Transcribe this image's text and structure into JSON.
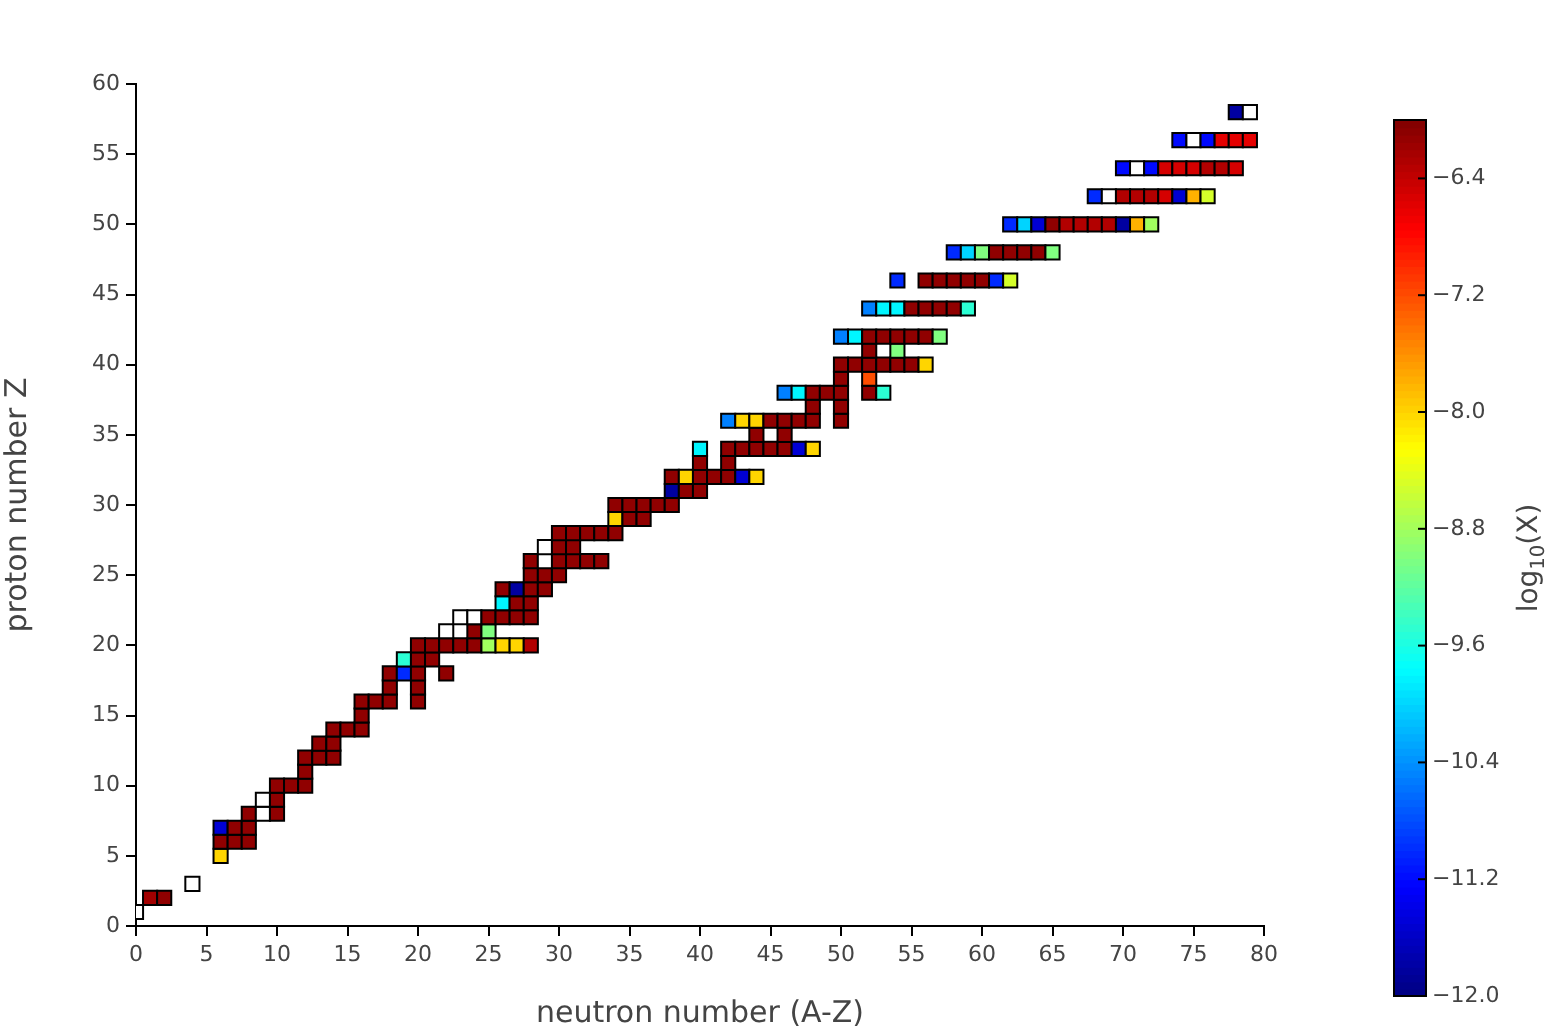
{
  "chart_data": {
    "type": "scatter",
    "xlabel": "neutron number (A-Z)",
    "ylabel": "proton number Z",
    "clabel": "log$_{10}$(X)",
    "marker": "square",
    "legend": false,
    "grid": false,
    "xlim": [
      0,
      80
    ],
    "xticks": [
      0,
      5,
      10,
      15,
      20,
      25,
      30,
      35,
      40,
      45,
      50,
      55,
      60,
      65,
      70,
      75,
      80
    ],
    "ylim": [
      0,
      60
    ],
    "yticks": [
      0,
      5,
      10,
      15,
      20,
      25,
      30,
      35,
      40,
      45,
      50,
      55,
      60
    ],
    "clim": [
      -12,
      -6
    ],
    "cticks": [
      -6.4,
      -7.2,
      {
        "value": -8,
        "label": "−8.0"
      },
      -8.8,
      -9.6,
      -10.4,
      -11.2,
      {
        "value": -12,
        "label": "−12.0"
      }
    ],
    "x": [
      0,
      1,
      2,
      4,
      6,
      6,
      7,
      8,
      6,
      7,
      8,
      8,
      9,
      10,
      9,
      10,
      10,
      11,
      12,
      12,
      12,
      13,
      14,
      13,
      14,
      14,
      15,
      16,
      16,
      16,
      17,
      18,
      20,
      18,
      20,
      18,
      19,
      20,
      22,
      19,
      20,
      21,
      20,
      21,
      22,
      23,
      24,
      25,
      26,
      27,
      28,
      22,
      24,
      25,
      23,
      24,
      25,
      26,
      27,
      28,
      26,
      27,
      28,
      26,
      27,
      28,
      29,
      28,
      29,
      30,
      28,
      29,
      30,
      31,
      32,
      33,
      29,
      30,
      31,
      30,
      31,
      32,
      33,
      34,
      34,
      35,
      36,
      34,
      35,
      36,
      37,
      38,
      38,
      39,
      40,
      38,
      39,
      40,
      41,
      42,
      43,
      44,
      40,
      42,
      40,
      42,
      43,
      44,
      45,
      46,
      47,
      48,
      44,
      46,
      42,
      43,
      44,
      45,
      46,
      47,
      48,
      50,
      48,
      50,
      46,
      47,
      48,
      49,
      50,
      52,
      53,
      50,
      52,
      50,
      51,
      52,
      53,
      54,
      55,
      56,
      52,
      54,
      50,
      51,
      52,
      53,
      54,
      55,
      56,
      57,
      52,
      53,
      54,
      55,
      56,
      57,
      58,
      59,
      54,
      56,
      57,
      58,
      59,
      60,
      61,
      62,
      58,
      59,
      60,
      61,
      62,
      63,
      64,
      65,
      62,
      63,
      64,
      65,
      66,
      67,
      68,
      69,
      70,
      71,
      72,
      68,
      69,
      70,
      71,
      72,
      73,
      74,
      75,
      76,
      70,
      71,
      72,
      73,
      74,
      75,
      76,
      77,
      78,
      74,
      75,
      76,
      77,
      78,
      79,
      78,
      79
    ],
    "values": [
      1,
      2,
      2,
      3,
      5,
      6,
      6,
      6,
      7,
      7,
      7,
      8,
      8,
      8,
      9,
      9,
      10,
      10,
      10,
      11,
      12,
      12,
      12,
      13,
      13,
      14,
      14,
      14,
      15,
      16,
      16,
      16,
      16,
      17,
      17,
      18,
      18,
      18,
      18,
      19,
      19,
      19,
      20,
      20,
      20,
      20,
      20,
      20,
      20,
      20,
      20,
      21,
      21,
      21,
      22,
      22,
      22,
      22,
      22,
      22,
      23,
      23,
      23,
      24,
      24,
      24,
      24,
      25,
      25,
      25,
      26,
      26,
      26,
      26,
      26,
      26,
      27,
      27,
      27,
      28,
      28,
      28,
      28,
      28,
      29,
      29,
      29,
      30,
      30,
      30,
      30,
      30,
      31,
      31,
      31,
      32,
      32,
      32,
      32,
      32,
      32,
      32,
      33,
      33,
      34,
      34,
      34,
      34,
      34,
      34,
      34,
      34,
      35,
      35,
      36,
      36,
      36,
      36,
      36,
      36,
      36,
      36,
      37,
      37,
      38,
      38,
      38,
      38,
      38,
      38,
      38,
      39,
      39,
      40,
      40,
      40,
      40,
      40,
      40,
      40,
      41,
      41,
      42,
      42,
      42,
      42,
      42,
      42,
      42,
      42,
      44,
      44,
      44,
      44,
      44,
      44,
      44,
      44,
      46,
      46,
      46,
      46,
      46,
      46,
      46,
      46,
      48,
      48,
      48,
      48,
      48,
      48,
      48,
      48,
      50,
      50,
      50,
      50,
      50,
      50,
      50,
      50,
      50,
      50,
      50,
      52,
      52,
      52,
      52,
      52,
      52,
      52,
      52,
      52,
      54,
      54,
      54,
      54,
      54,
      54,
      54,
      54,
      54,
      56,
      56,
      56,
      56,
      56,
      56,
      58,
      58
    ],
    "cvalues": [
      null,
      -6.2,
      -6.1,
      null,
      -8.0,
      -6.1,
      -6.1,
      -6.1,
      -11.5,
      -6.1,
      -6.1,
      -6.1,
      null,
      -6.1,
      null,
      -6.1,
      -6.1,
      -6.1,
      -6.1,
      -6.1,
      -6.1,
      -6.1,
      -6.1,
      -6.1,
      -6.1,
      -6.1,
      -6.1,
      -6.1,
      -6.1,
      -6.1,
      -6.1,
      -6.1,
      -6.1,
      -6.1,
      -6.1,
      -6.1,
      -11.0,
      -6.1,
      -6.1,
      -9.5,
      -6.1,
      -6.1,
      -6.1,
      -6.1,
      -6.1,
      -6.1,
      -6.1,
      -8.8,
      -8.0,
      -8.0,
      -6.3,
      null,
      -6.1,
      -9.0,
      null,
      null,
      -6.1,
      -6.1,
      -6.1,
      -6.1,
      -9.8,
      -6.1,
      -6.1,
      -6.1,
      -11.8,
      -6.1,
      -6.1,
      -6.1,
      -6.1,
      -6.1,
      -6.1,
      null,
      -6.1,
      -6.1,
      -6.1,
      -6.1,
      null,
      -6.1,
      -6.1,
      -6.1,
      -6.1,
      -6.1,
      -6.1,
      -6.1,
      -8.0,
      -6.1,
      -6.1,
      -6.1,
      -6.1,
      -6.1,
      -6.1,
      -6.1,
      -11.8,
      -6.1,
      -6.1,
      -6.1,
      -8.0,
      -6.1,
      -6.1,
      -6.1,
      -11.5,
      -8.0,
      -6.1,
      -6.1,
      -9.8,
      -6.1,
      -6.1,
      -6.1,
      -6.1,
      -6.1,
      -11.5,
      -8.0,
      -6.1,
      -6.1,
      -10.5,
      -8.0,
      -8.0,
      -6.1,
      -6.1,
      -6.1,
      -6.1,
      -6.1,
      -6.1,
      -6.1,
      -10.5,
      -9.8,
      -6.1,
      -6.1,
      -6.1,
      -6.1,
      -9.5,
      -6.1,
      -7.2,
      -6.1,
      -6.1,
      -6.1,
      -6.1,
      -6.1,
      -6.1,
      -8.0,
      -6.1,
      -9.0,
      -10.5,
      -9.8,
      -6.1,
      -6.1,
      -6.1,
      -6.1,
      -6.1,
      -9.0,
      -10.5,
      -9.8,
      -9.8,
      -6.1,
      -6.1,
      -6.1,
      -6.1,
      -9.5,
      -11.0,
      -6.1,
      -6.1,
      -6.1,
      -6.1,
      -6.1,
      -11.0,
      -8.5,
      -11.0,
      -10.0,
      -9.0,
      -6.1,
      -6.1,
      -6.1,
      -6.1,
      -9.0,
      -11.0,
      -10.0,
      -11.5,
      -6.1,
      -6.3,
      -6.3,
      -6.3,
      -6.3,
      -11.8,
      -7.8,
      -8.8,
      -11.0,
      null,
      -6.3,
      -6.3,
      -6.3,
      -6.5,
      -11.5,
      -7.8,
      -8.5,
      -11.2,
      null,
      -11.2,
      -6.5,
      -6.5,
      -6.5,
      -6.3,
      -6.3,
      -6.5,
      -11.2,
      null,
      -11.2,
      -6.6,
      -6.6,
      -6.6,
      -11.8,
      null
    ]
  }
}
